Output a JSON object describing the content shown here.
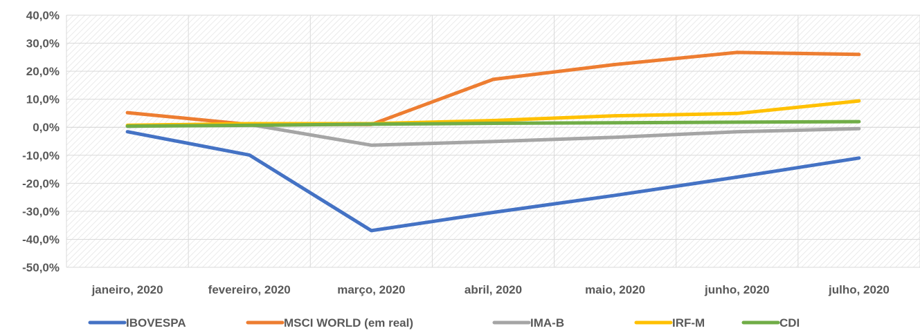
{
  "chart_data": {
    "type": "line",
    "title": "",
    "xlabel": "",
    "ylabel": "",
    "categories": [
      "janeiro, 2020",
      "fevereiro, 2020",
      "março, 2020",
      "abril, 2020",
      "maio, 2020",
      "junho, 2020",
      "julho, 2020"
    ],
    "y_tick_labels": [
      "40,0%",
      "30,0%",
      "20,0%",
      "10,0%",
      "0,0%",
      "-10,0%",
      "-20,0%",
      "-30,0%",
      "-40,0%",
      "-50,0%"
    ],
    "y_ticks": [
      40,
      30,
      20,
      10,
      0,
      -10,
      -20,
      -30,
      -40,
      -50
    ],
    "ylim": [
      -50,
      40
    ],
    "grid": true,
    "legend_position": "bottom",
    "series": [
      {
        "name": "IBOVESPA",
        "color": "#4472C4",
        "values": [
          -1.6,
          -9.9,
          -36.9,
          -30.4,
          -24.3,
          -17.8,
          -11.0
        ]
      },
      {
        "name": "MSCI WORLD (em real)",
        "color": "#ED7D31",
        "values": [
          5.2,
          1.0,
          1.0,
          17.1,
          22.4,
          26.7,
          26.0
        ]
      },
      {
        "name": "IMA-B",
        "color": "#A5A5A5",
        "values": [
          0.3,
          1.0,
          -6.4,
          -5.1,
          -3.6,
          -1.6,
          -0.5
        ]
      },
      {
        "name": "IRF-M",
        "color": "#FFC000",
        "values": [
          0.7,
          1.3,
          1.3,
          2.4,
          4.1,
          4.9,
          9.4
        ]
      },
      {
        "name": "CDI",
        "color": "#70AD47",
        "values": [
          0.4,
          0.7,
          1.1,
          1.4,
          1.6,
          1.8,
          2.0
        ]
      }
    ]
  }
}
